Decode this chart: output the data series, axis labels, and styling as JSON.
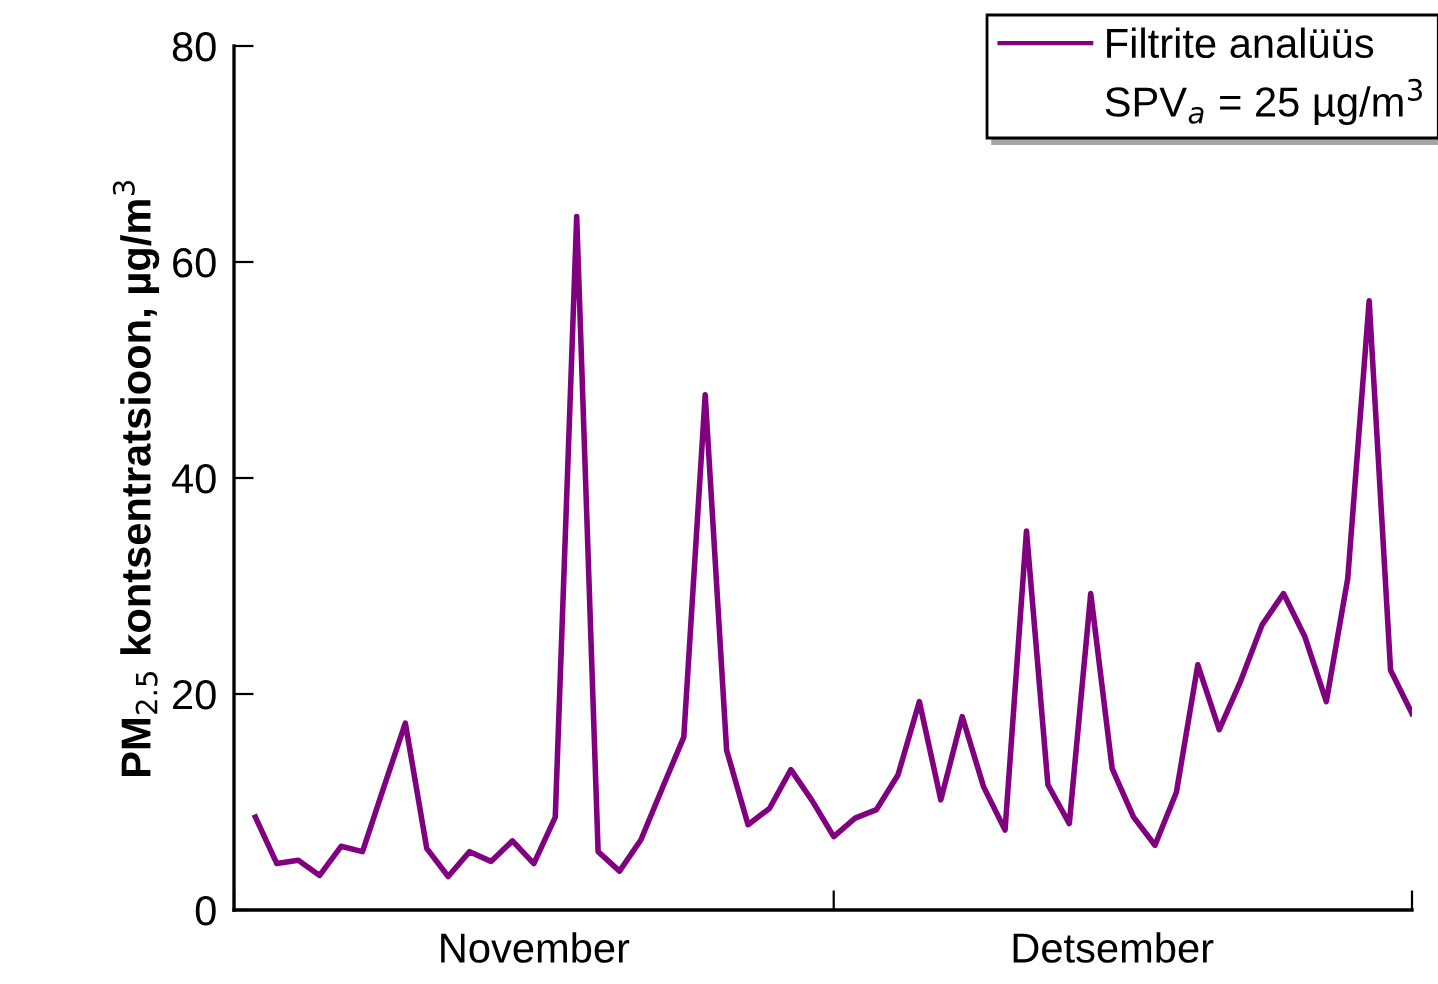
{
  "chart_data": {
    "type": "line",
    "ylabel": "PM$_{2.5}$ kontsentratsioon, µg/m$^{3}$",
    "categories": [
      null,
      null,
      null,
      null,
      null,
      null,
      null,
      null,
      null,
      null,
      null,
      null,
      null,
      "November",
      null,
      null,
      null,
      null,
      null,
      null,
      null,
      null,
      null,
      null,
      null,
      null,
      null,
      null,
      null,
      null,
      null,
      null,
      null,
      null,
      null,
      null,
      null,
      null,
      null,
      null,
      "Detsember",
      null,
      null,
      null,
      null,
      null,
      null,
      null,
      null,
      null,
      null,
      null,
      null,
      null,
      null
    ],
    "series": [
      {
        "name": "Filtrite analüüs",
        "color": "#800080",
        "values": [
          8.6,
          4.3,
          4.6,
          3.2,
          5.9,
          5.4,
          11.4,
          17.3,
          5.7,
          3.1,
          5.4,
          4.5,
          6.4,
          4.3,
          8.6,
          64.2,
          5.4,
          3.6,
          6.5,
          11.3,
          16.0,
          47.7,
          14.8,
          7.9,
          9.4,
          13.0,
          10.1,
          6.8,
          8.5,
          9.3,
          12.5,
          19.3,
          10.2,
          17.9,
          11.4,
          7.4,
          35.1,
          11.6,
          8.0,
          29.3,
          13.1,
          8.6,
          6.0,
          10.9,
          22.7,
          16.7,
          21.2,
          26.4,
          29.3,
          25.3,
          19.3,
          30.7,
          56.4,
          22.2,
          18.2
        ]
      }
    ],
    "annotations": [
      "SPV$_{a}$ = 25 µg/m$^{3}$"
    ],
    "ylim": [
      0,
      80
    ],
    "yticks": [
      0,
      20,
      40,
      60,
      80
    ],
    "grid": false,
    "legend": "top right",
    "marker": "none",
    "line_style": "solid"
  }
}
